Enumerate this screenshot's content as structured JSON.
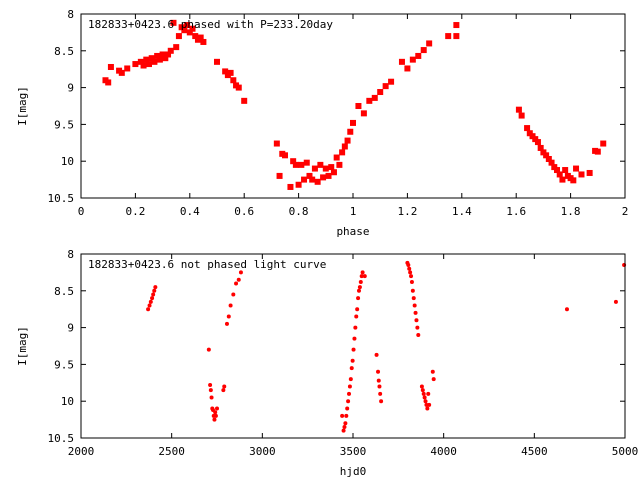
{
  "chart_data": [
    {
      "type": "scatter",
      "title": "182833+0423.6 phased with P=233.20day",
      "xlabel": "phase",
      "ylabel": "I[mag]",
      "xlim": [
        0,
        2
      ],
      "ylim": [
        8,
        10.5
      ],
      "y_inverted": true,
      "x_ticks": [
        "0",
        "0.2",
        "0.4",
        "0.6",
        "0.8",
        "1",
        "1.2",
        "1.4",
        "1.6",
        "1.8",
        "2"
      ],
      "y_ticks": [
        "8",
        "8.5",
        "9",
        "9.5",
        "10",
        "10.5"
      ],
      "marker_color": "#ff0000",
      "grid": false,
      "series": [
        {
          "x": [
            0.09,
            0.1,
            0.11,
            0.14,
            0.15,
            0.17,
            0.2,
            0.22,
            0.23,
            0.24,
            0.25,
            0.26,
            0.27,
            0.28,
            0.29,
            0.3,
            0.31,
            0.32,
            0.33,
            0.34,
            0.35,
            0.36,
            0.37,
            0.38,
            0.39,
            0.4,
            0.41,
            0.42,
            0.43,
            0.44,
            0.45,
            0.5,
            0.53,
            0.54,
            0.55,
            0.56,
            0.57,
            0.58,
            0.6,
            0.72,
            0.73,
            0.74,
            0.75,
            0.77,
            0.78,
            0.79,
            0.8,
            0.81,
            0.82,
            0.83,
            0.84,
            0.85,
            0.86,
            0.87,
            0.88,
            0.89,
            0.9,
            0.91,
            0.92,
            0.93,
            0.94,
            0.95,
            0.96,
            0.97,
            0.98,
            0.99,
            1.0,
            1.02,
            1.04,
            1.06,
            1.08,
            1.1,
            1.12,
            1.14,
            1.18,
            1.2,
            1.22,
            1.24,
            1.26,
            1.28,
            1.35,
            1.38,
            1.38,
            1.61,
            1.62,
            1.64,
            1.65,
            1.66,
            1.67,
            1.68,
            1.69,
            1.7,
            1.71,
            1.72,
            1.73,
            1.74,
            1.75,
            1.76,
            1.77,
            1.78,
            1.79,
            1.8,
            1.81,
            1.82,
            1.84,
            1.87,
            1.89,
            1.9,
            1.92
          ],
          "y": [
            8.9,
            8.93,
            8.72,
            8.77,
            8.8,
            8.74,
            8.68,
            8.65,
            8.7,
            8.62,
            8.68,
            8.6,
            8.65,
            8.57,
            8.62,
            8.55,
            8.6,
            8.55,
            8.5,
            8.12,
            8.45,
            8.3,
            8.18,
            8.22,
            8.15,
            8.25,
            8.2,
            8.3,
            8.35,
            8.32,
            8.38,
            8.65,
            8.78,
            8.83,
            8.8,
            8.9,
            8.97,
            9.0,
            9.18,
            9.76,
            10.2,
            9.9,
            9.92,
            10.35,
            10.0,
            10.05,
            10.32,
            10.05,
            10.25,
            10.02,
            10.2,
            10.25,
            10.1,
            10.28,
            10.05,
            10.22,
            10.1,
            10.2,
            10.08,
            10.15,
            9.95,
            10.05,
            9.88,
            9.8,
            9.72,
            9.6,
            9.48,
            9.25,
            9.35,
            9.18,
            9.14,
            9.06,
            8.98,
            8.92,
            8.65,
            8.74,
            8.62,
            8.57,
            8.49,
            8.4,
            8.3,
            8.15,
            8.3,
            9.3,
            9.38,
            9.55,
            9.62,
            9.66,
            9.7,
            9.74,
            9.82,
            9.88,
            9.92,
            9.97,
            10.02,
            10.08,
            10.12,
            10.18,
            10.25,
            10.12,
            10.2,
            10.23,
            10.26,
            10.1,
            10.18,
            10.16,
            9.86,
            9.87,
            9.76
          ]
        }
      ]
    },
    {
      "type": "scatter",
      "title": "182833+0423.6 not phased light curve",
      "xlabel": "hjd0",
      "ylabel": "I[mag]",
      "xlim": [
        2000,
        5000
      ],
      "ylim": [
        8,
        10.5
      ],
      "y_inverted": true,
      "x_ticks": [
        "2000",
        "2500",
        "3000",
        "3500",
        "4000",
        "4500",
        "5000"
      ],
      "y_ticks": [
        "8",
        "8.5",
        "9",
        "9.5",
        "10",
        "10.5"
      ],
      "marker_color": "#ff0000",
      "grid": false,
      "series": [
        {
          "x": [
            2370,
            2378,
            2385,
            2392,
            2398,
            2404,
            2410,
            2705,
            2712,
            2716,
            2720,
            2724,
            2728,
            2732,
            2736,
            2740,
            2744,
            2750,
            2785,
            2790,
            2805,
            2815,
            2825,
            2840,
            2855,
            2870,
            2882,
            3440,
            3448,
            3453,
            3458,
            3463,
            3468,
            3473,
            3478,
            3483,
            3488,
            3493,
            3498,
            3503,
            3508,
            3513,
            3518,
            3523,
            3528,
            3533,
            3538,
            3543,
            3548,
            3553,
            3565,
            3630,
            3638,
            3642,
            3646,
            3650,
            3655,
            3800,
            3805,
            3810,
            3815,
            3820,
            3825,
            3830,
            3835,
            3840,
            3845,
            3850,
            3855,
            3860,
            3880,
            3885,
            3890,
            3895,
            3900,
            3905,
            3910,
            3915,
            3920,
            3940,
            3945,
            4680,
            4950,
            4995
          ],
          "y": [
            8.75,
            8.7,
            8.65,
            8.6,
            8.55,
            8.5,
            8.45,
            9.3,
            9.78,
            9.85,
            9.95,
            10.1,
            10.12,
            10.2,
            10.25,
            10.15,
            10.2,
            10.1,
            9.85,
            9.8,
            8.95,
            8.85,
            8.7,
            8.55,
            8.4,
            8.35,
            8.25,
            10.2,
            10.4,
            10.35,
            10.3,
            10.2,
            10.1,
            10.0,
            9.9,
            9.8,
            9.7,
            9.55,
            9.45,
            9.3,
            9.15,
            9.0,
            8.85,
            8.75,
            8.6,
            8.5,
            8.45,
            8.38,
            8.3,
            8.25,
            8.3,
            9.37,
            9.6,
            9.72,
            9.8,
            9.9,
            10.0,
            8.12,
            8.15,
            8.2,
            8.25,
            8.3,
            8.38,
            8.5,
            8.6,
            8.7,
            8.8,
            8.9,
            9.0,
            9.1,
            9.8,
            9.85,
            9.9,
            9.95,
            10.0,
            10.05,
            10.1,
            9.9,
            10.05,
            9.6,
            9.7,
            8.75,
            8.65,
            8.15
          ]
        }
      ]
    }
  ]
}
